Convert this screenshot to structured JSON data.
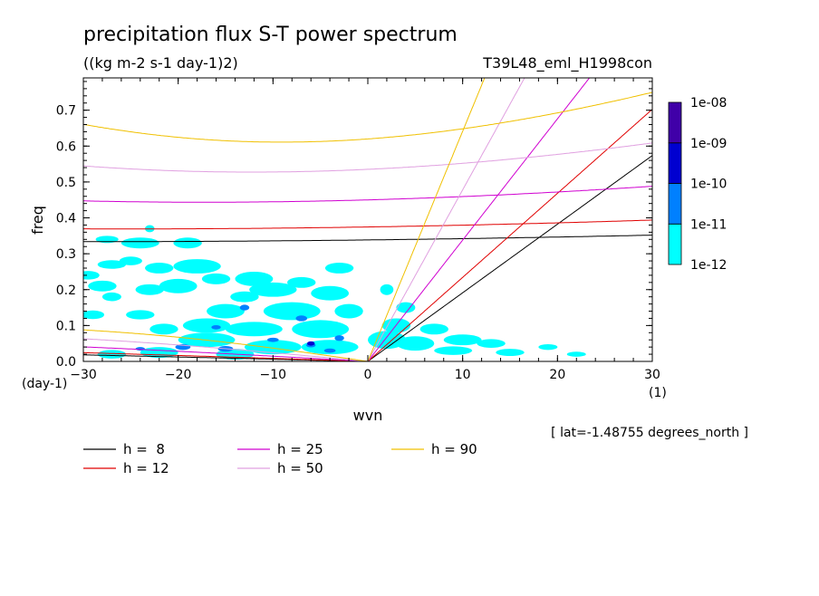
{
  "chart_data": {
    "type": "contour",
    "title": "precipitation flux S-T power spectrum",
    "subtitle": "((kg m-2 s-1 day-1)2)",
    "run_label": "T39L48_eml_H1998con",
    "xlabel": "wvn",
    "ylabel": "freq",
    "x_unit": "(1)",
    "y_unit": "(day-1)",
    "xlim": [
      -30,
      30
    ],
    "ylim": [
      0,
      0.79
    ],
    "x_ticks": [
      -30,
      -20,
      -10,
      0,
      10,
      20,
      30
    ],
    "x_tick_labels": [
      "-30",
      "-20",
      "-10",
      "0",
      "10",
      "20",
      "30"
    ],
    "y_ticks": [
      0,
      0.1,
      0.2,
      0.3,
      0.4,
      0.5,
      0.6,
      0.7
    ],
    "y_tick_labels": [
      "0.0",
      "0.1",
      "0.2",
      "0.3",
      "0.4",
      "0.5",
      "0.6",
      "0.7"
    ],
    "latitude_note": "[ lat=-1.48755 degrees_north ]",
    "colorbar": {
      "labels": [
        "1e-12",
        "1e-11",
        "1e-10",
        "1e-09",
        "1e-08"
      ],
      "colors": [
        "#00ffff",
        "#0080ff",
        "#0000d0",
        "#4000a8"
      ]
    },
    "dispersion_curves": [
      {
        "label": "h =  8",
        "h": 8,
        "color": "#000000"
      },
      {
        "label": "h = 12",
        "h": 12,
        "color": "#e00000"
      },
      {
        "label": "h = 25",
        "h": 25,
        "color": "#d000d0"
      },
      {
        "label": "h = 50",
        "h": 50,
        "color": "#e0a0e0"
      },
      {
        "label": "h = 90",
        "h": 90,
        "color": "#f0c000"
      }
    ],
    "power_patches_1e-12": [
      [
        -29.5,
        0.24,
        1.2,
        0.012
      ],
      [
        -28,
        0.21,
        1.5,
        0.015
      ],
      [
        -27,
        0.18,
        1,
        0.012
      ],
      [
        -29,
        0.13,
        1.2,
        0.012
      ],
      [
        -27,
        0.27,
        1.5,
        0.012
      ],
      [
        -25,
        0.28,
        1.2,
        0.012
      ],
      [
        -27.5,
        0.34,
        1.2,
        0.01
      ],
      [
        -24,
        0.33,
        2,
        0.015
      ],
      [
        -22,
        0.26,
        1.5,
        0.015
      ],
      [
        -19,
        0.33,
        1.5,
        0.015
      ],
      [
        -20,
        0.21,
        2,
        0.02
      ],
      [
        -23,
        0.2,
        1.5,
        0.015
      ],
      [
        -24,
        0.13,
        1.5,
        0.013
      ],
      [
        -21.5,
        0.09,
        1.5,
        0.015
      ],
      [
        -17,
        0.1,
        2.5,
        0.02
      ],
      [
        -15,
        0.14,
        2,
        0.02
      ],
      [
        -12,
        0.23,
        2,
        0.02
      ],
      [
        -10,
        0.2,
        2.5,
        0.02
      ],
      [
        -13,
        0.18,
        1.5,
        0.015
      ],
      [
        -16,
        0.23,
        1.5,
        0.015
      ],
      [
        -7,
        0.22,
        1.5,
        0.015
      ],
      [
        -4,
        0.19,
        2,
        0.02
      ],
      [
        -8,
        0.14,
        3,
        0.025
      ],
      [
        -5,
        0.09,
        3,
        0.025
      ],
      [
        -12,
        0.09,
        3,
        0.02
      ],
      [
        -17,
        0.06,
        3,
        0.02
      ],
      [
        -10,
        0.04,
        3,
        0.02
      ],
      [
        -4,
        0.04,
        3,
        0.02
      ],
      [
        -2,
        0.14,
        1.5,
        0.02
      ],
      [
        -3,
        0.26,
        1.5,
        0.015
      ],
      [
        -18,
        0.265,
        2.5,
        0.02
      ],
      [
        -23,
        0.37,
        0.5,
        0.01
      ],
      [
        -27,
        0.02,
        1.5,
        0.012
      ],
      [
        -22,
        0.025,
        2,
        0.015
      ],
      [
        -14,
        0.02,
        2,
        0.015
      ],
      [
        2,
        0.2,
        0.7,
        0.015
      ],
      [
        4,
        0.15,
        1,
        0.015
      ],
      [
        3,
        0.1,
        1.5,
        0.02
      ],
      [
        7,
        0.09,
        1.5,
        0.015
      ],
      [
        10,
        0.06,
        2,
        0.015
      ],
      [
        13,
        0.05,
        1.5,
        0.012
      ],
      [
        15,
        0.025,
        1.5,
        0.01
      ],
      [
        9,
        0.03,
        2,
        0.012
      ],
      [
        5,
        0.05,
        2,
        0.02
      ],
      [
        2,
        0.06,
        2,
        0.025
      ],
      [
        19,
        0.04,
        1,
        0.008
      ],
      [
        22,
        0.02,
        1,
        0.007
      ]
    ],
    "power_patches_1e-11": [
      [
        -19.5,
        0.04,
        0.8,
        0.008
      ],
      [
        -15,
        0.035,
        0.8,
        0.008
      ],
      [
        -6,
        0.045,
        0.5,
        0.006
      ],
      [
        -10,
        0.06,
        0.6,
        0.006
      ],
      [
        -4,
        0.03,
        0.6,
        0.006
      ],
      [
        -24,
        0.035,
        0.5,
        0.005
      ],
      [
        -13,
        0.15,
        0.5,
        0.008
      ],
      [
        -16,
        0.095,
        0.5,
        0.006
      ],
      [
        -7,
        0.12,
        0.6,
        0.008
      ],
      [
        -3,
        0.065,
        0.5,
        0.008
      ]
    ],
    "power_patches_1e-10": [
      [
        -6,
        0.05,
        0.4,
        0.006
      ]
    ]
  }
}
